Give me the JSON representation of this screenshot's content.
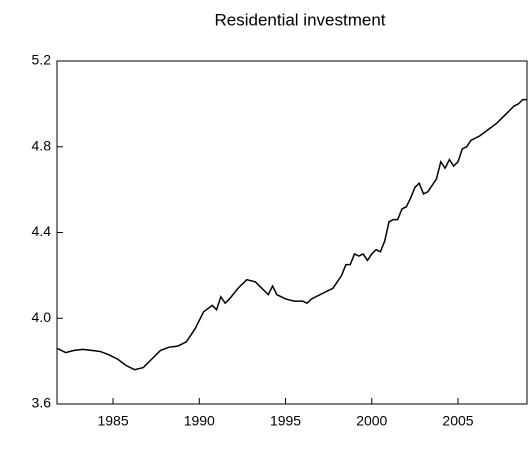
{
  "chart_data": {
    "type": "line",
    "title": "Residential investment",
    "x": [
      1981.75,
      1982.25,
      1982.75,
      1983.25,
      1983.75,
      1984.25,
      1984.75,
      1985.25,
      1985.75,
      1986.25,
      1986.75,
      1987.25,
      1987.75,
      1988.25,
      1988.75,
      1989.25,
      1989.75,
      1990.25,
      1990.75,
      1991.0,
      1991.25,
      1991.5,
      1991.75,
      1992.25,
      1992.75,
      1993.25,
      1993.75,
      1994.0,
      1994.25,
      1994.5,
      1995.0,
      1995.5,
      1996.0,
      1996.25,
      1996.5,
      1997.0,
      1997.5,
      1997.75,
      1998.25,
      1998.5,
      1998.75,
      1999.0,
      1999.25,
      1999.5,
      1999.75,
      2000.0,
      2000.25,
      2000.5,
      2000.75,
      2001.0,
      2001.25,
      2001.5,
      2001.75,
      2002.0,
      2002.25,
      2002.5,
      2002.75,
      2003.0,
      2003.25,
      2003.75,
      2004.0,
      2004.25,
      2004.5,
      2004.75,
      2005.0,
      2005.25,
      2005.5,
      2005.75,
      2006.25,
      2006.75,
      2007.25,
      2007.75,
      2008.25,
      2008.5,
      2008.75,
      2009.0
    ],
    "values": [
      3.86,
      3.84,
      3.85,
      3.855,
      3.85,
      3.845,
      3.83,
      3.81,
      3.78,
      3.76,
      3.77,
      3.81,
      3.85,
      3.865,
      3.87,
      3.89,
      3.95,
      4.03,
      4.06,
      4.04,
      4.1,
      4.07,
      4.09,
      4.14,
      4.18,
      4.17,
      4.13,
      4.11,
      4.15,
      4.11,
      4.09,
      4.08,
      4.08,
      4.07,
      4.09,
      4.11,
      4.13,
      4.14,
      4.2,
      4.25,
      4.25,
      4.3,
      4.29,
      4.3,
      4.27,
      4.3,
      4.32,
      4.31,
      4.36,
      4.45,
      4.46,
      4.46,
      4.51,
      4.52,
      4.56,
      4.61,
      4.63,
      4.58,
      4.59,
      4.65,
      4.73,
      4.7,
      4.74,
      4.71,
      4.73,
      4.79,
      4.8,
      4.83,
      4.85,
      4.88,
      4.91,
      4.95,
      4.99,
      5.0,
      5.02,
      5.02
    ],
    "color": "#000000",
    "xlim": [
      1981.75,
      2009.0
    ],
    "xticks": [
      1985,
      1990,
      1995,
      2000,
      2005
    ],
    "ylim": [
      3.6,
      5.2
    ],
    "yticks": [
      3.6,
      {
        "value": 4,
        "label": "4.0"
      },
      4.4,
      4.8,
      5.2
    ]
  }
}
